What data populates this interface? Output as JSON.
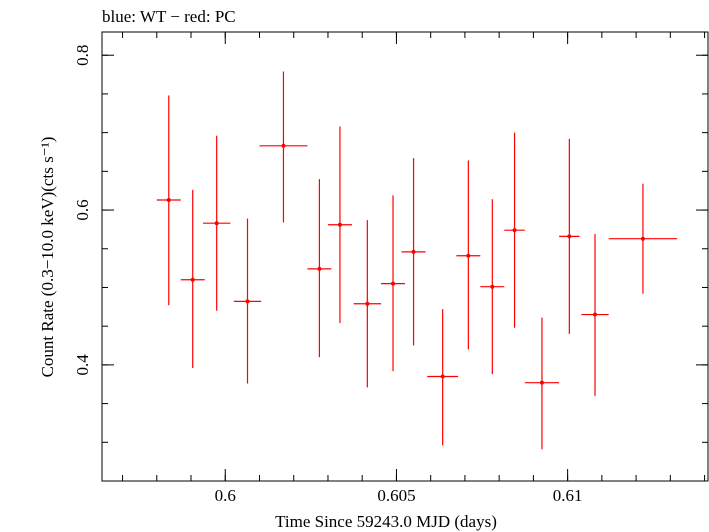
{
  "chart_data": {
    "type": "scatter",
    "title": "blue: WT − red: PC",
    "xlabel": "Time Since 59243.0 MJD (days)",
    "ylabel": "Count Rate (0.3−10.0 keV)(cts s⁻¹)",
    "xlim": [
      0.5964,
      0.6141
    ],
    "ylim": [
      0.25,
      0.83
    ],
    "x_ticks": [
      {
        "value": 0.6,
        "label": "0.6"
      },
      {
        "value": 0.605,
        "label": "0.605"
      },
      {
        "value": 0.61,
        "label": "0.61"
      }
    ],
    "y_ticks": [
      {
        "value": 0.4,
        "label": "0.4"
      },
      {
        "value": 0.6,
        "label": "0.6"
      },
      {
        "value": 0.8,
        "label": "0.8"
      }
    ],
    "x_minor_step": 0.001,
    "y_minor_step": 0.05,
    "grid": false,
    "series": [
      {
        "color": "#ff0000",
        "points": [
          {
            "x": 0.59835,
            "xerr": 0.00035,
            "y": 0.613,
            "ylo": 0.477,
            "yhi": 0.748
          },
          {
            "x": 0.59905,
            "xerr": 0.00035,
            "y": 0.51,
            "ylo": 0.396,
            "yhi": 0.626
          },
          {
            "x": 0.59975,
            "xerr": 0.0004,
            "y": 0.583,
            "ylo": 0.47,
            "yhi": 0.696
          },
          {
            "x": 0.60065,
            "xerr": 0.0004,
            "y": 0.482,
            "ylo": 0.376,
            "yhi": 0.589
          },
          {
            "x": 0.6017,
            "xerr": 0.0007,
            "y": 0.683,
            "ylo": 0.584,
            "yhi": 0.779
          },
          {
            "x": 0.60275,
            "xerr": 0.00035,
            "y": 0.524,
            "ylo": 0.41,
            "yhi": 0.64
          },
          {
            "x": 0.60335,
            "xerr": 0.00035,
            "y": 0.581,
            "ylo": 0.454,
            "yhi": 0.708
          },
          {
            "x": 0.60415,
            "xerr": 0.0004,
            "y": 0.479,
            "ylo": 0.371,
            "yhi": 0.587
          },
          {
            "x": 0.6049,
            "xerr": 0.00035,
            "y": 0.505,
            "ylo": 0.392,
            "yhi": 0.619
          },
          {
            "x": 0.6055,
            "xerr": 0.00035,
            "y": 0.546,
            "ylo": 0.425,
            "yhi": 0.667
          },
          {
            "x": 0.60635,
            "xerr": 0.00045,
            "y": 0.385,
            "ylo": 0.296,
            "yhi": 0.472
          },
          {
            "x": 0.6071,
            "xerr": 0.00035,
            "y": 0.541,
            "ylo": 0.42,
            "yhi": 0.664
          },
          {
            "x": 0.6078,
            "xerr": 0.00035,
            "y": 0.501,
            "ylo": 0.388,
            "yhi": 0.614
          },
          {
            "x": 0.60845,
            "xerr": 0.0003,
            "y": 0.574,
            "ylo": 0.448,
            "yhi": 0.7
          },
          {
            "x": 0.60925,
            "xerr": 0.0005,
            "y": 0.377,
            "ylo": 0.291,
            "yhi": 0.461
          },
          {
            "x": 0.61005,
            "xerr": 0.0003,
            "y": 0.566,
            "ylo": 0.44,
            "yhi": 0.692
          },
          {
            "x": 0.6108,
            "xerr": 0.0004,
            "y": 0.465,
            "ylo": 0.36,
            "yhi": 0.569
          },
          {
            "x": 0.6122,
            "xerr": 0.001,
            "y": 0.563,
            "ylo": 0.492,
            "yhi": 0.634
          }
        ]
      }
    ]
  }
}
